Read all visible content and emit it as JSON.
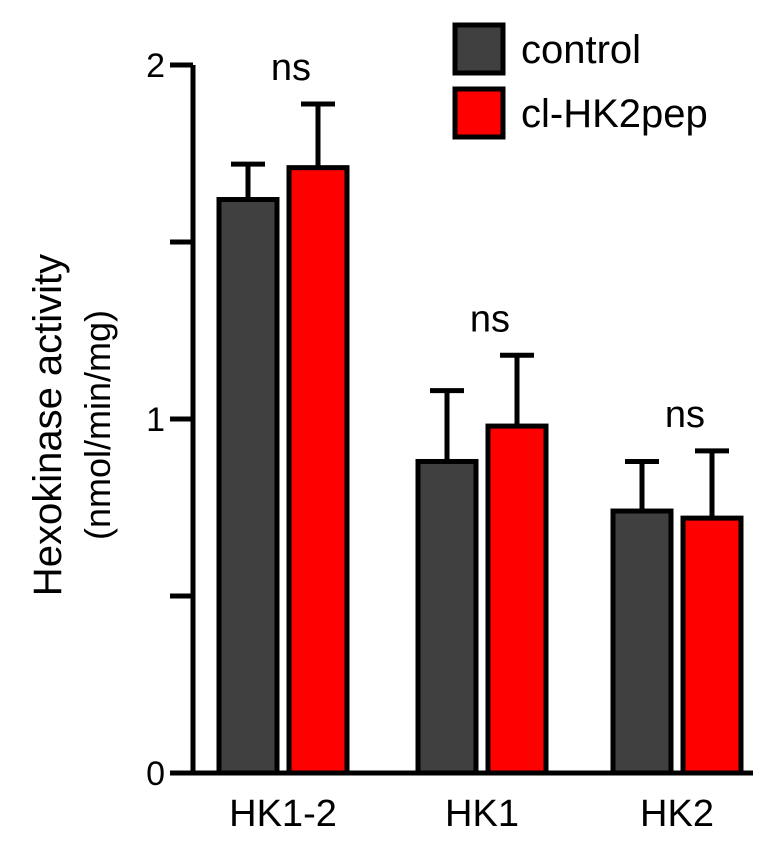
{
  "chart_data": {
    "type": "bar",
    "title": "",
    "xlabel": "",
    "ylabel": "Hexokinase activity",
    "ylabel_units": "(nmol/min/mg)",
    "ylim": [
      0,
      2
    ],
    "y_ticks": [
      0,
      0.5,
      1,
      1.5,
      2
    ],
    "y_tick_labels": [
      "0",
      "",
      "1",
      "",
      "2"
    ],
    "categories": [
      "HK1-2",
      "HK1",
      "HK2"
    ],
    "series": [
      {
        "name": "control",
        "color": "#404040",
        "values": [
          1.62,
          0.88,
          0.74
        ],
        "errors": [
          0.1,
          0.2,
          0.14
        ]
      },
      {
        "name": "cl-HK2pep",
        "color": "#ff0000",
        "values": [
          1.71,
          0.98,
          0.72
        ],
        "errors": [
          0.18,
          0.2,
          0.19
        ]
      }
    ],
    "annotations": [
      "ns",
      "ns",
      "ns"
    ],
    "legend_position": "top-right",
    "grid": false
  }
}
